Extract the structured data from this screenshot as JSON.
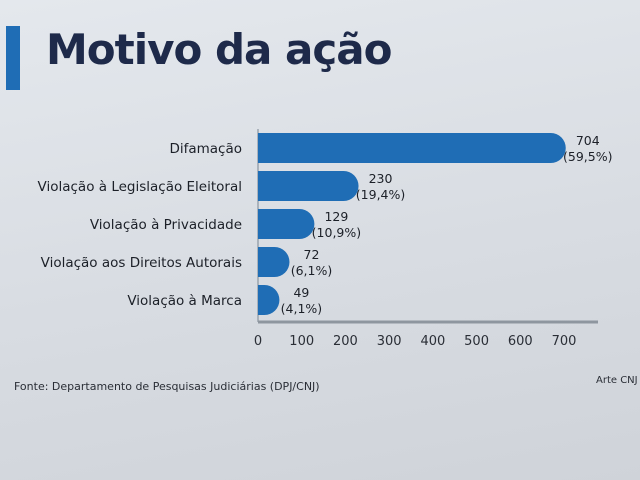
{
  "title": "Motivo da ação",
  "source": "Fonte: Departamento de Pesquisas Judiciárias (DPJ/CNJ)",
  "credit": "Arte CNJ",
  "colors": {
    "bar": "#1f6db5",
    "accent": "#1f6db5",
    "title": "#1e2a4a"
  },
  "chart_data": {
    "type": "bar",
    "orientation": "horizontal",
    "categories": [
      "Difamação",
      "Violação à Legislação Eleitoral",
      "Violação à Privacidade",
      "Violação aos Direitos Autorais",
      "Violação à Marca"
    ],
    "values": [
      704,
      230,
      129,
      72,
      49
    ],
    "percent_labels": [
      "(59,5%)",
      "(19,4%)",
      "(10,9%)",
      "(6,1%)",
      "(4,1%)"
    ],
    "xlim": [
      0,
      750
    ],
    "xticks": [
      0,
      100,
      200,
      300,
      400,
      500,
      600,
      700
    ],
    "grid": false
  }
}
